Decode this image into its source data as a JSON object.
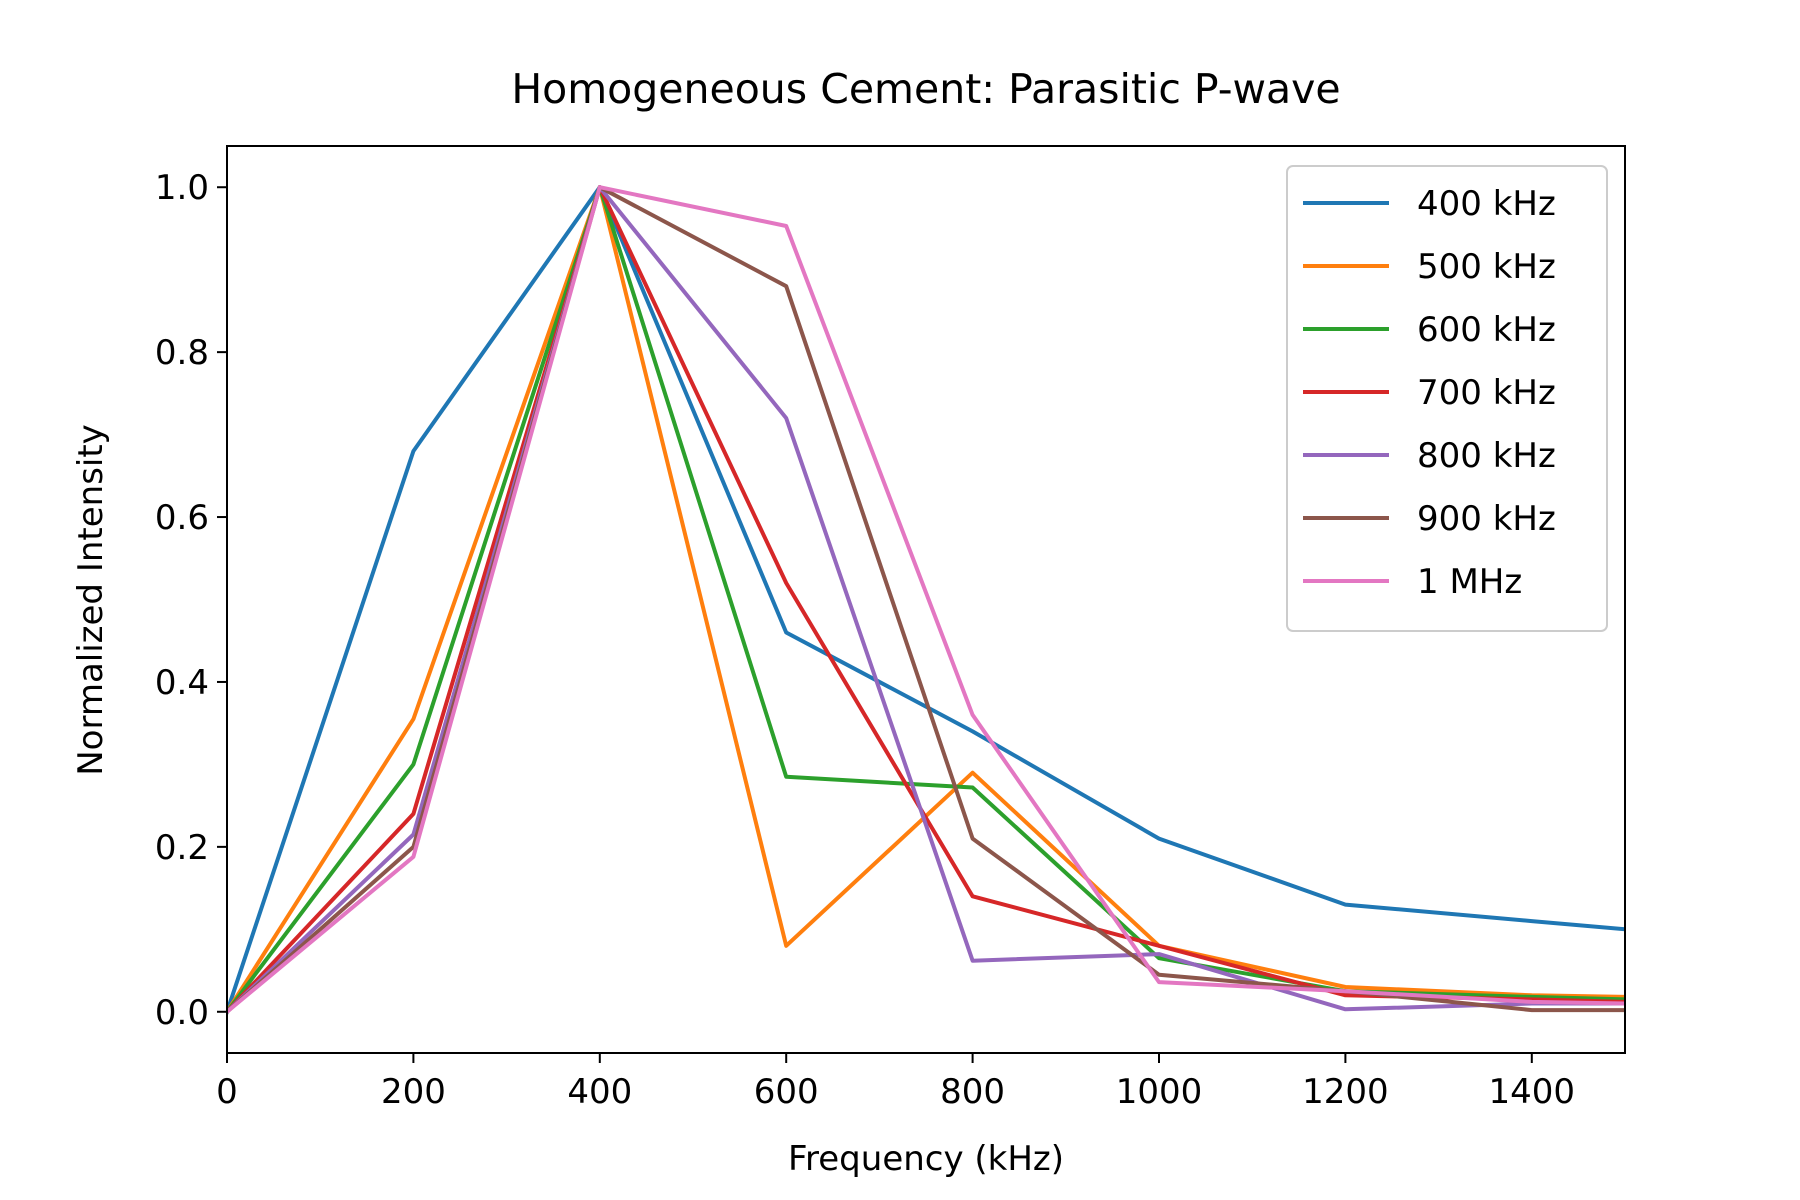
{
  "chart_data": {
    "type": "line",
    "title": "Homogeneous Cement: Parasitic P-wave",
    "xlabel": "Frequency (kHz)",
    "ylabel": "Normalized Intensity",
    "xlim": [
      0,
      1500
    ],
    "ylim": [
      -0.05,
      1.05
    ],
    "xticks": [
      0,
      200,
      400,
      600,
      800,
      1000,
      1200,
      1400
    ],
    "yticks": [
      0.0,
      0.2,
      0.4,
      0.6,
      0.8,
      1.0
    ],
    "xtick_labels": [
      "0",
      "200",
      "400",
      "600",
      "800",
      "1000",
      "1200",
      "1400"
    ],
    "ytick_labels": [
      "0.0",
      "0.2",
      "0.4",
      "0.6",
      "0.8",
      "1.0"
    ],
    "grid": false,
    "legend": "top-right",
    "x": [
      0,
      200,
      400,
      600,
      800,
      1000,
      1200,
      1400,
      1500
    ],
    "series": [
      {
        "name": "400 kHz",
        "color": "#1f77b4",
        "values": [
          0.0,
          0.68,
          1.0,
          0.46,
          0.34,
          0.21,
          0.13,
          0.11,
          0.1
        ]
      },
      {
        "name": "500 kHz",
        "color": "#ff7f0e",
        "values": [
          0.0,
          0.355,
          1.0,
          0.08,
          0.29,
          0.08,
          0.03,
          0.02,
          0.018
        ]
      },
      {
        "name": "600 kHz",
        "color": "#2ca02c",
        "values": [
          0.0,
          0.3,
          1.0,
          0.285,
          0.272,
          0.065,
          0.025,
          0.018,
          0.015
        ]
      },
      {
        "name": "700 kHz",
        "color": "#d62728",
        "values": [
          0.0,
          0.24,
          1.0,
          0.52,
          0.14,
          0.08,
          0.02,
          0.015,
          0.012
        ]
      },
      {
        "name": "800 kHz",
        "color": "#9467bd",
        "values": [
          0.0,
          0.215,
          1.0,
          0.72,
          0.062,
          0.07,
          0.003,
          0.01,
          0.01
        ]
      },
      {
        "name": "900 kHz",
        "color": "#8c564b",
        "values": [
          0.0,
          0.2,
          1.0,
          0.88,
          0.21,
          0.045,
          0.025,
          0.002,
          0.002
        ]
      },
      {
        "name": "1 MHz",
        "color": "#e377c2",
        "values": [
          0.0,
          0.188,
          1.0,
          0.953,
          0.36,
          0.036,
          0.025,
          0.012,
          0.01
        ]
      }
    ]
  }
}
